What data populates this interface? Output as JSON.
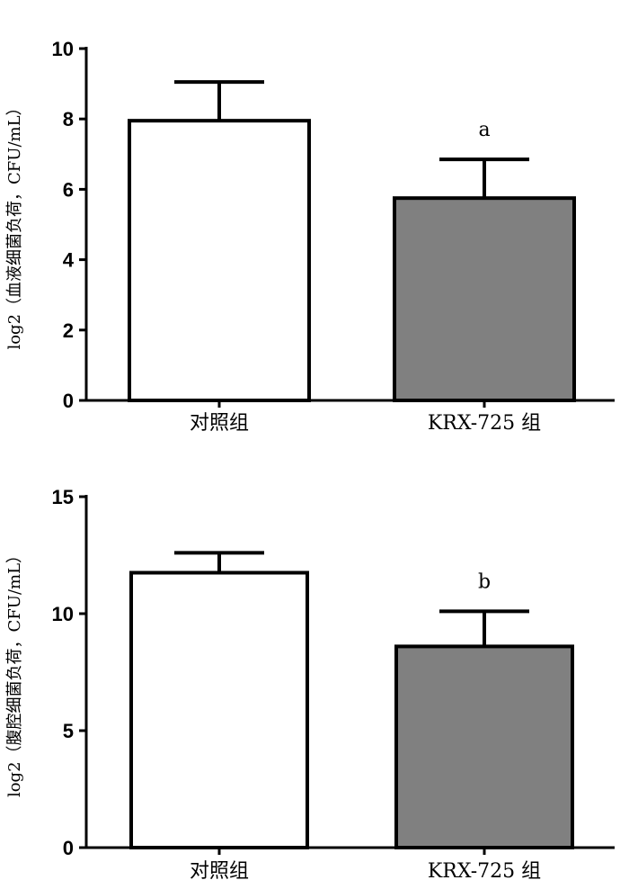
{
  "chart_data": [
    {
      "type": "bar",
      "categories": [
        "对照组",
        "KRX-725 组"
      ],
      "values": [
        7.95,
        5.75
      ],
      "errors": [
        1.1,
        1.1
      ],
      "annotations": [
        "",
        "a"
      ],
      "bar_colors": [
        "#ffffff",
        "#808080"
      ],
      "title": "",
      "xlabel": "",
      "ylabel": "log2（血液细菌负荷，CFU/mL）",
      "ylim": [
        0,
        10
      ],
      "yticks": [
        0,
        2,
        4,
        6,
        8,
        10
      ],
      "grid": false
    },
    {
      "type": "bar",
      "categories": [
        "对照组",
        "KRX-725 组"
      ],
      "values": [
        11.75,
        8.6
      ],
      "errors": [
        0.85,
        1.5
      ],
      "annotations": [
        "",
        "b"
      ],
      "bar_colors": [
        "#ffffff",
        "#808080"
      ],
      "title": "",
      "xlabel": "",
      "ylabel": "log2（腹腔细菌负荷，CFU/mL）",
      "ylim": [
        0,
        15
      ],
      "yticks": [
        0,
        5,
        10,
        15
      ],
      "grid": false
    }
  ]
}
